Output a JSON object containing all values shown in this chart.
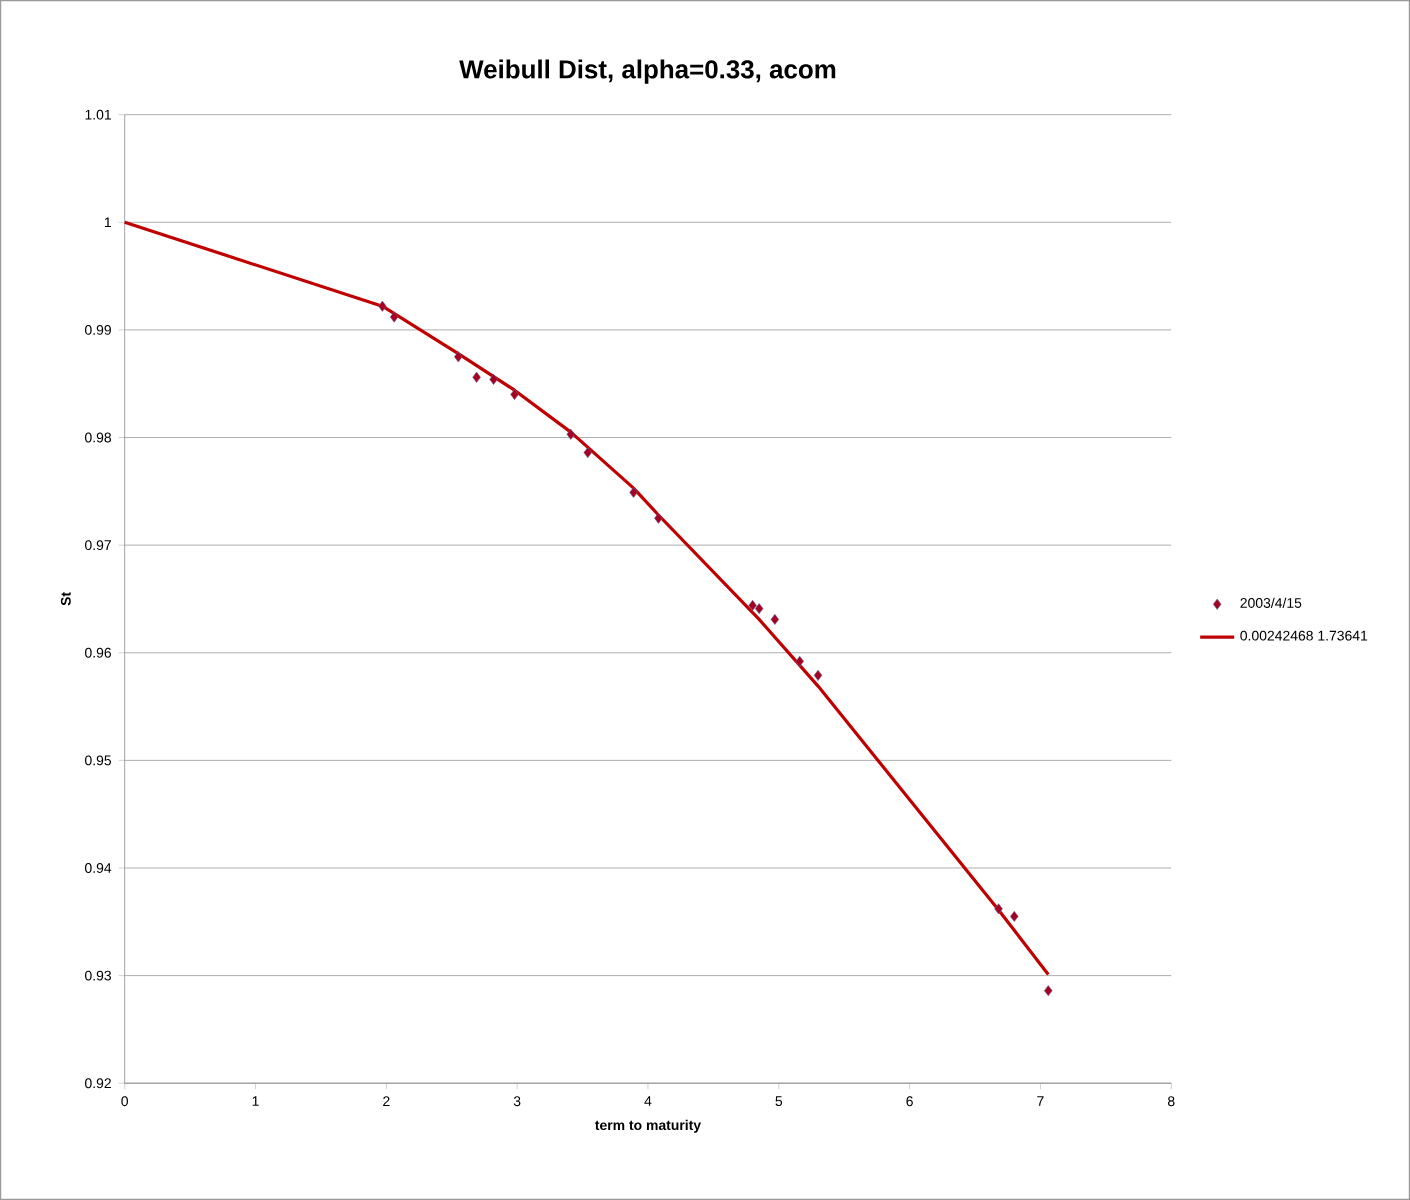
{
  "chart_data": {
    "type": "scatter",
    "title": "Weibull Dist, alpha=0.33,  acom",
    "xlabel": "term to maturity",
    "ylabel": "St",
    "xlim": [
      0,
      8
    ],
    "xticks": [
      0,
      1,
      2,
      3,
      4,
      5,
      6,
      7,
      8
    ],
    "ylim": [
      0.92,
      1.01
    ],
    "yticks": [
      0.92,
      0.93,
      0.94,
      0.95,
      0.96,
      0.97,
      0.98,
      0.99,
      1,
      1.01
    ],
    "grid": "y",
    "legend": "right",
    "series": [
      {
        "name": "2003/4/15",
        "marker": "diamond",
        "color": "#a50021",
        "x": [
          1.97,
          2.06,
          2.55,
          2.69,
          2.82,
          2.98,
          3.41,
          3.54,
          3.89,
          4.08,
          4.8,
          4.85,
          4.97,
          5.16,
          5.3,
          6.68,
          6.8,
          7.06
        ],
        "values": [
          0.9922,
          0.9912,
          0.9875,
          0.9856,
          0.9854,
          0.984,
          0.9803,
          0.9786,
          0.9749,
          0.9725,
          0.9644,
          0.9641,
          0.9631,
          0.9592,
          0.9579,
          0.9362,
          0.9355,
          0.9286
        ]
      },
      {
        "name": "0.00242468 1.73641",
        "type": "line",
        "marker": "none",
        "color": "#c00000",
        "x": [
          0,
          1.97,
          2.55,
          2.98,
          3.41,
          3.89,
          4.08,
          4.85,
          5.3,
          6.68,
          7.06
        ],
        "values": [
          1.0,
          0.9922,
          0.9878,
          0.9844,
          0.9805,
          0.9753,
          0.9728,
          0.9631,
          0.9569,
          0.9361,
          0.9301
        ]
      }
    ]
  }
}
